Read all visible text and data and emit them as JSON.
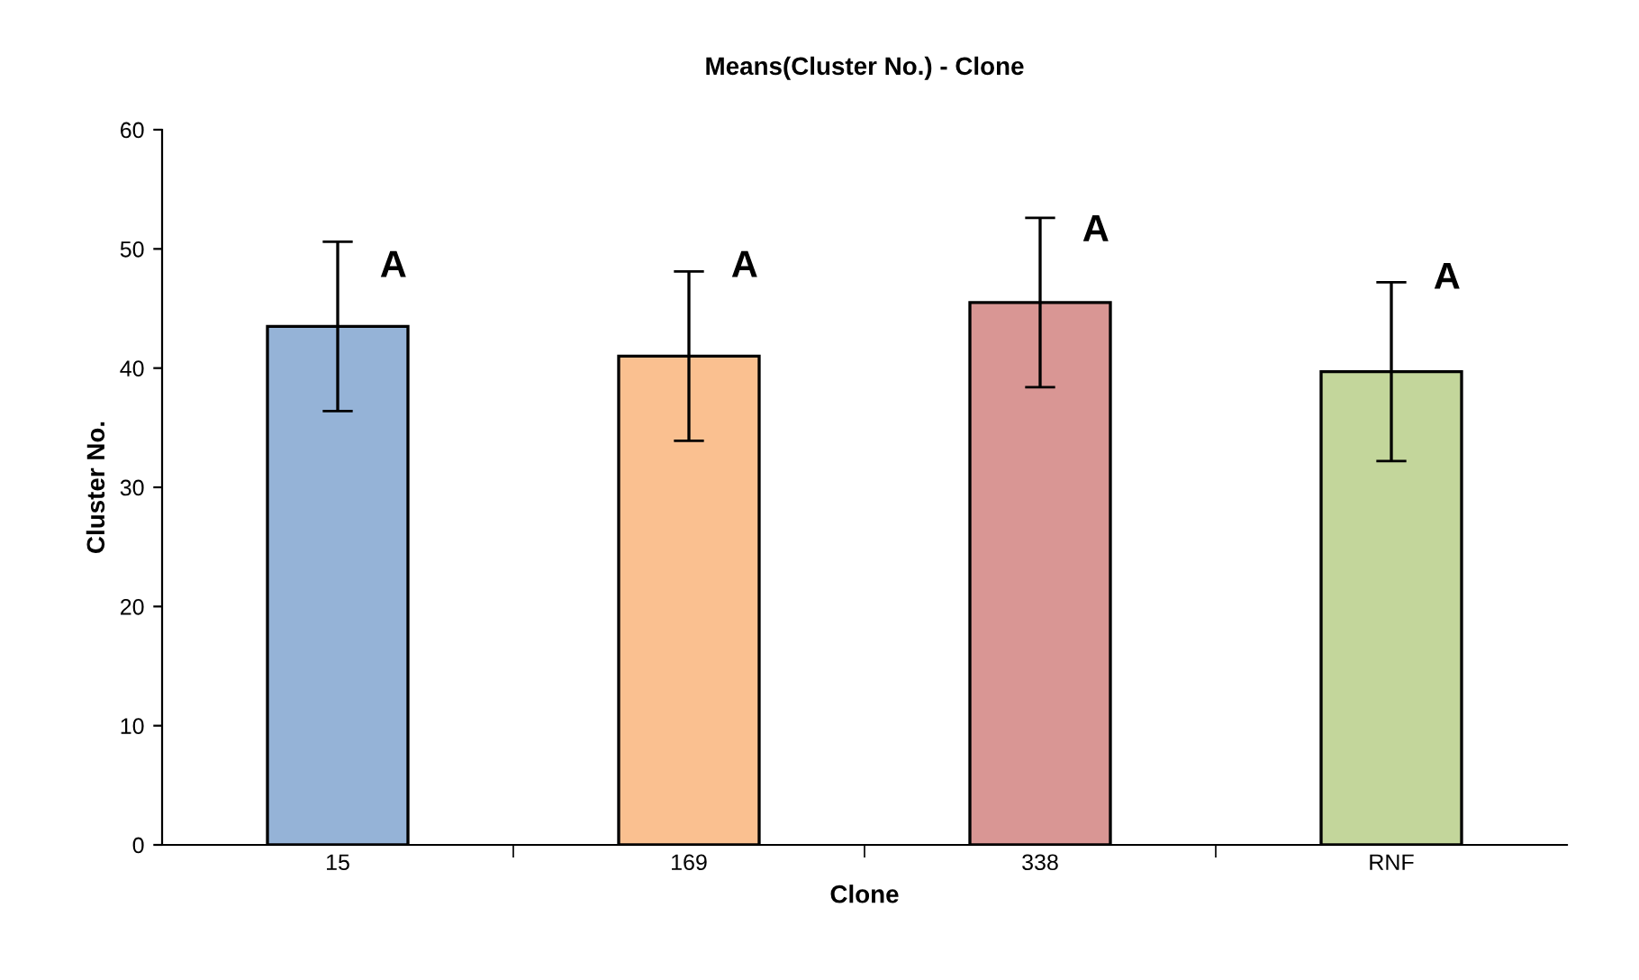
{
  "chart_data": {
    "type": "bar",
    "title": "Means(Cluster No.) - Clone",
    "xlabel": "Clone",
    "ylabel": "Cluster No.",
    "categories": [
      "15",
      "169",
      "338",
      "RNF"
    ],
    "values": [
      43.5,
      41.0,
      45.5,
      39.7
    ],
    "errors": [
      7.1,
      7.1,
      7.1,
      7.5
    ],
    "colors": [
      "#95b3d7",
      "#fac090",
      "#d99694",
      "#c3d69b"
    ],
    "ylim": [
      0,
      60
    ],
    "yticks": [
      0,
      10,
      20,
      30,
      40,
      50,
      60
    ],
    "grid": false,
    "legend": false,
    "annotations": [
      {
        "text": "A",
        "x": "15",
        "y": 47
      },
      {
        "text": "A",
        "x": "169",
        "y": 47
      },
      {
        "text": "A",
        "x": "338",
        "y": 50
      },
      {
        "text": "A",
        "x": "RNF",
        "y": 46
      }
    ]
  }
}
